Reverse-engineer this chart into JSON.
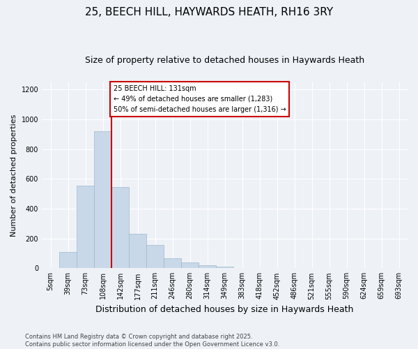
{
  "title": "25, BEECH HILL, HAYWARDS HEATH, RH16 3RY",
  "subtitle": "Size of property relative to detached houses in Haywards Heath",
  "xlabel": "Distribution of detached houses by size in Haywards Heath",
  "ylabel": "Number of detached properties",
  "categories": [
    "5sqm",
    "39sqm",
    "73sqm",
    "108sqm",
    "142sqm",
    "177sqm",
    "211sqm",
    "246sqm",
    "280sqm",
    "314sqm",
    "349sqm",
    "383sqm",
    "418sqm",
    "452sqm",
    "486sqm",
    "521sqm",
    "555sqm",
    "590sqm",
    "624sqm",
    "659sqm",
    "693sqm"
  ],
  "values": [
    0,
    110,
    555,
    920,
    545,
    230,
    155,
    65,
    40,
    20,
    10,
    3,
    2,
    1,
    1,
    0,
    0,
    0,
    0,
    0,
    0
  ],
  "bar_color": "#c8d8e8",
  "bar_edge_color": "#a0b8cc",
  "annotation_text": "25 BEECH HILL: 131sqm\n← 49% of detached houses are smaller (1,283)\n50% of semi-detached houses are larger (1,316) →",
  "annotation_box_color": "#ffffff",
  "annotation_box_edge": "#cc0000",
  "red_line_color": "#cc0000",
  "footer": "Contains HM Land Registry data © Crown copyright and database right 2025.\nContains public sector information licensed under the Open Government Licence v3.0.",
  "ylim": [
    0,
    1250
  ],
  "title_fontsize": 11,
  "subtitle_fontsize": 9,
  "xlabel_fontsize": 9,
  "ylabel_fontsize": 8,
  "tick_fontsize": 7,
  "footer_fontsize": 6,
  "bg_color": "#eef2f7"
}
